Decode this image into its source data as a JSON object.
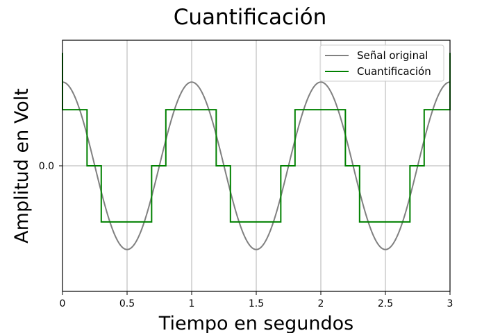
{
  "chart_data": {
    "type": "line",
    "title": "Cuantificación",
    "xlabel": "Tiempo en segundos",
    "ylabel": "Amplitud en Volt",
    "xlim": [
      0,
      3
    ],
    "ylim": [
      -1.5,
      1.5
    ],
    "xticks": [
      0,
      0.5,
      1,
      1.5,
      2,
      2.5,
      3
    ],
    "xtick_labels": [
      "0",
      "0.5",
      "1",
      "1.5",
      "2",
      "2.5",
      "3"
    ],
    "yticks": [
      0
    ],
    "ytick_labels": [
      "0.0"
    ],
    "grid": true,
    "legend_position": "top-right",
    "series": [
      {
        "name": "Señal original",
        "color": "#808080",
        "function": "cos(2*pi*t)",
        "x_range": [
          0,
          3
        ]
      },
      {
        "name": "Cuantificación",
        "color": "#008000",
        "step_points": [
          [
            0,
            1.35
          ],
          [
            0,
            0.67
          ],
          [
            0.19,
            0.67
          ],
          [
            0.19,
            0
          ],
          [
            0.3,
            0
          ],
          [
            0.3,
            -0.67
          ],
          [
            0.69,
            -0.67
          ],
          [
            0.69,
            0
          ],
          [
            0.8,
            0
          ],
          [
            0.8,
            0.67
          ],
          [
            1.19,
            0.67
          ],
          [
            1.19,
            0
          ],
          [
            1.3,
            0
          ],
          [
            1.3,
            -0.67
          ],
          [
            1.69,
            -0.67
          ],
          [
            1.69,
            0
          ],
          [
            1.8,
            0
          ],
          [
            1.8,
            0.67
          ],
          [
            2.19,
            0.67
          ],
          [
            2.19,
            0
          ],
          [
            2.3,
            0
          ],
          [
            2.3,
            -0.67
          ],
          [
            2.69,
            -0.67
          ],
          [
            2.69,
            0
          ],
          [
            2.8,
            0
          ],
          [
            2.8,
            0.67
          ],
          [
            3,
            0.67
          ],
          [
            3,
            1.35
          ]
        ]
      }
    ]
  }
}
